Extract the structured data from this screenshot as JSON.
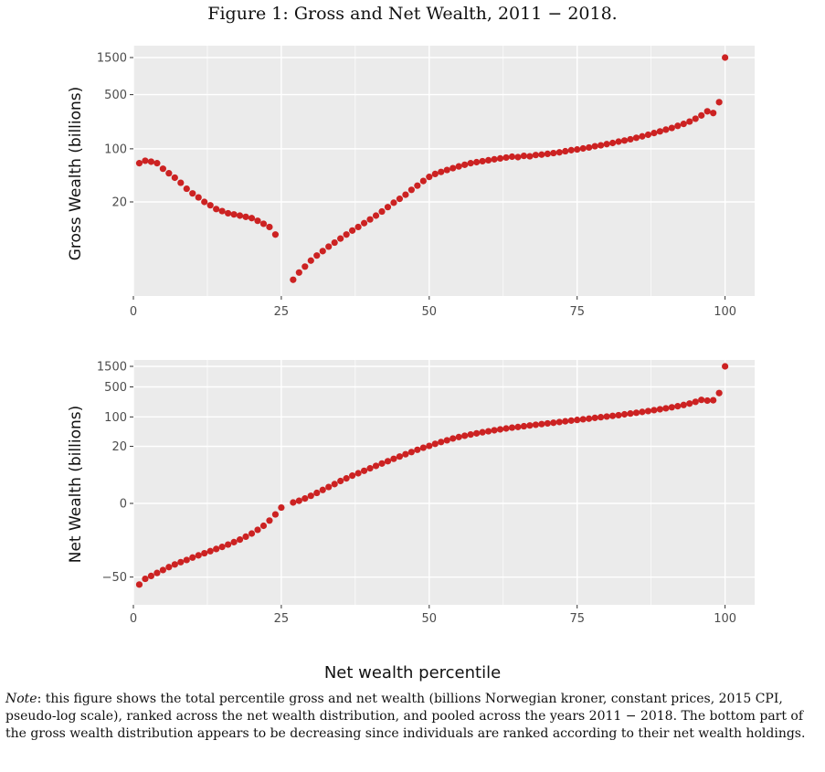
{
  "figure_title": "Figure 1: Gross and Net Wealth, 2011 − 2018.",
  "shared_xlabel": "Net wealth percentile",
  "note": {
    "lead": "Note",
    "text": ": this figure shows the total percentile gross and net wealth (billions Norwegian kroner, constant prices, 2015 CPI, pseudo-log scale), ranked across the net wealth distribution, and pooled across the years 2011 − 2018. The bottom part of the gross wealth distribution appears to be decreasing since individuals are ranked according to their net wealth holdings."
  },
  "colors": {
    "point": "#cc2222",
    "panel": "#ebebeb",
    "grid": "#ffffff"
  },
  "chart_data": [
    {
      "type": "scatter",
      "scale": "pseudo-log",
      "ylabel": "Gross Wealth (billions)",
      "xlabel": "",
      "xlim": [
        0,
        105
      ],
      "xticks": [
        0,
        25,
        50,
        75,
        100
      ],
      "yticks": [
        20,
        100,
        500,
        1500
      ],
      "grid": true,
      "points": [
        [
          1,
          65
        ],
        [
          2,
          70
        ],
        [
          3,
          68
        ],
        [
          4,
          65
        ],
        [
          5,
          55
        ],
        [
          6,
          48
        ],
        [
          7,
          42
        ],
        [
          8,
          36
        ],
        [
          9,
          30
        ],
        [
          10,
          26
        ],
        [
          11,
          23
        ],
        [
          12,
          20
        ],
        [
          13,
          18
        ],
        [
          14,
          16
        ],
        [
          15,
          15
        ],
        [
          16,
          14
        ],
        [
          17,
          13.5
        ],
        [
          18,
          13
        ],
        [
          19,
          12.5
        ],
        [
          20,
          12
        ],
        [
          21,
          11
        ],
        [
          22,
          10
        ],
        [
          23,
          9
        ],
        [
          24,
          7
        ],
        [
          27,
          1.1
        ],
        [
          28,
          1.6
        ],
        [
          29,
          2.1
        ],
        [
          30,
          2.7
        ],
        [
          31,
          3.3
        ],
        [
          32,
          3.9
        ],
        [
          33,
          4.6
        ],
        [
          34,
          5.3
        ],
        [
          35,
          6.1
        ],
        [
          36,
          7
        ],
        [
          37,
          8
        ],
        [
          38,
          9
        ],
        [
          39,
          10.2
        ],
        [
          40,
          11.5
        ],
        [
          41,
          13
        ],
        [
          42,
          14.8
        ],
        [
          43,
          17
        ],
        [
          44,
          19.5
        ],
        [
          45,
          22
        ],
        [
          46,
          25
        ],
        [
          47,
          29
        ],
        [
          48,
          33
        ],
        [
          49,
          38
        ],
        [
          50,
          43
        ],
        [
          51,
          47
        ],
        [
          52,
          50
        ],
        [
          53,
          53
        ],
        [
          54,
          56
        ],
        [
          55,
          59
        ],
        [
          56,
          62
        ],
        [
          57,
          65
        ],
        [
          58,
          67
        ],
        [
          59,
          69
        ],
        [
          60,
          71
        ],
        [
          61,
          73
        ],
        [
          62,
          75
        ],
        [
          63,
          77
        ],
        [
          64,
          79
        ],
        [
          65,
          78
        ],
        [
          66,
          81
        ],
        [
          67,
          80
        ],
        [
          68,
          83
        ],
        [
          69,
          84
        ],
        [
          70,
          86
        ],
        [
          71,
          88
        ],
        [
          72,
          90
        ],
        [
          73,
          93
        ],
        [
          74,
          96
        ],
        [
          75,
          98
        ],
        [
          76,
          101
        ],
        [
          77,
          104
        ],
        [
          78,
          108
        ],
        [
          79,
          111
        ],
        [
          80,
          115
        ],
        [
          81,
          119
        ],
        [
          82,
          124
        ],
        [
          83,
          128
        ],
        [
          84,
          133
        ],
        [
          85,
          139
        ],
        [
          86,
          145
        ],
        [
          87,
          152
        ],
        [
          88,
          160
        ],
        [
          89,
          168
        ],
        [
          90,
          177
        ],
        [
          91,
          186
        ],
        [
          92,
          198
        ],
        [
          93,
          210
        ],
        [
          94,
          225
        ],
        [
          95,
          245
        ],
        [
          96,
          270
        ],
        [
          97,
          305
        ],
        [
          98,
          290
        ],
        [
          99,
          400
        ],
        [
          100,
          1500
        ]
      ]
    },
    {
      "type": "scatter",
      "scale": "pseudo-log",
      "ylabel": "Net Wealth (billions)",
      "xlabel": "Net wealth percentile",
      "xlim": [
        0,
        105
      ],
      "xticks": [
        0,
        25,
        50,
        75,
        100
      ],
      "yticks": [
        -50,
        0,
        20,
        100,
        500,
        1500
      ],
      "grid": true,
      "points": [
        [
          1,
          -75
        ],
        [
          2,
          -55
        ],
        [
          3,
          -47
        ],
        [
          4,
          -40
        ],
        [
          5,
          -34
        ],
        [
          6,
          -29
        ],
        [
          7,
          -25
        ],
        [
          8,
          -22
        ],
        [
          9,
          -19.5
        ],
        [
          10,
          -17
        ],
        [
          11,
          -15
        ],
        [
          12,
          -13.3
        ],
        [
          13,
          -11.8
        ],
        [
          14,
          -10.4
        ],
        [
          15,
          -9.2
        ],
        [
          16,
          -8
        ],
        [
          17,
          -6.9
        ],
        [
          18,
          -5.9
        ],
        [
          19,
          -4.9
        ],
        [
          20,
          -4
        ],
        [
          21,
          -3.1
        ],
        [
          22,
          -2.3
        ],
        [
          23,
          -1.5
        ],
        [
          24,
          -0.8
        ],
        [
          25,
          -0.25
        ],
        [
          27,
          0.05
        ],
        [
          28,
          0.15
        ],
        [
          29,
          0.3
        ],
        [
          30,
          0.5
        ],
        [
          31,
          0.75
        ],
        [
          32,
          1.05
        ],
        [
          33,
          1.4
        ],
        [
          34,
          1.8
        ],
        [
          35,
          2.3
        ],
        [
          36,
          2.8
        ],
        [
          37,
          3.4
        ],
        [
          38,
          4
        ],
        [
          39,
          4.7
        ],
        [
          40,
          5.5
        ],
        [
          41,
          6.4
        ],
        [
          42,
          7.4
        ],
        [
          43,
          8.5
        ],
        [
          44,
          9.8
        ],
        [
          45,
          11.2
        ],
        [
          46,
          12.8
        ],
        [
          47,
          14.5
        ],
        [
          48,
          16.5
        ],
        [
          49,
          18.5
        ],
        [
          50,
          20.5
        ],
        [
          51,
          23
        ],
        [
          52,
          25.5
        ],
        [
          53,
          28
        ],
        [
          54,
          31
        ],
        [
          55,
          33.5
        ],
        [
          56,
          36
        ],
        [
          57,
          38.5
        ],
        [
          58,
          41
        ],
        [
          59,
          43.5
        ],
        [
          60,
          46
        ],
        [
          61,
          48.5
        ],
        [
          62,
          51
        ],
        [
          63,
          53.5
        ],
        [
          64,
          56
        ],
        [
          65,
          58
        ],
        [
          66,
          60.5
        ],
        [
          67,
          63
        ],
        [
          68,
          65.5
        ],
        [
          69,
          68
        ],
        [
          70,
          70.5
        ],
        [
          71,
          73
        ],
        [
          72,
          76
        ],
        [
          73,
          79
        ],
        [
          74,
          82
        ],
        [
          75,
          85
        ],
        [
          76,
          88
        ],
        [
          77,
          91
        ],
        [
          78,
          95
        ],
        [
          79,
          98.5
        ],
        [
          80,
          102
        ],
        [
          81,
          106
        ],
        [
          82,
          110
        ],
        [
          83,
          115
        ],
        [
          84,
          120
        ],
        [
          85,
          125
        ],
        [
          86,
          131
        ],
        [
          87,
          137
        ],
        [
          88,
          144
        ],
        [
          89,
          151
        ],
        [
          90,
          159
        ],
        [
          91,
          168
        ],
        [
          92,
          178
        ],
        [
          93,
          190
        ],
        [
          94,
          205
        ],
        [
          95,
          225
        ],
        [
          96,
          250
        ],
        [
          97,
          240
        ],
        [
          98,
          245
        ],
        [
          99,
          360
        ],
        [
          100,
          1500
        ]
      ]
    }
  ]
}
